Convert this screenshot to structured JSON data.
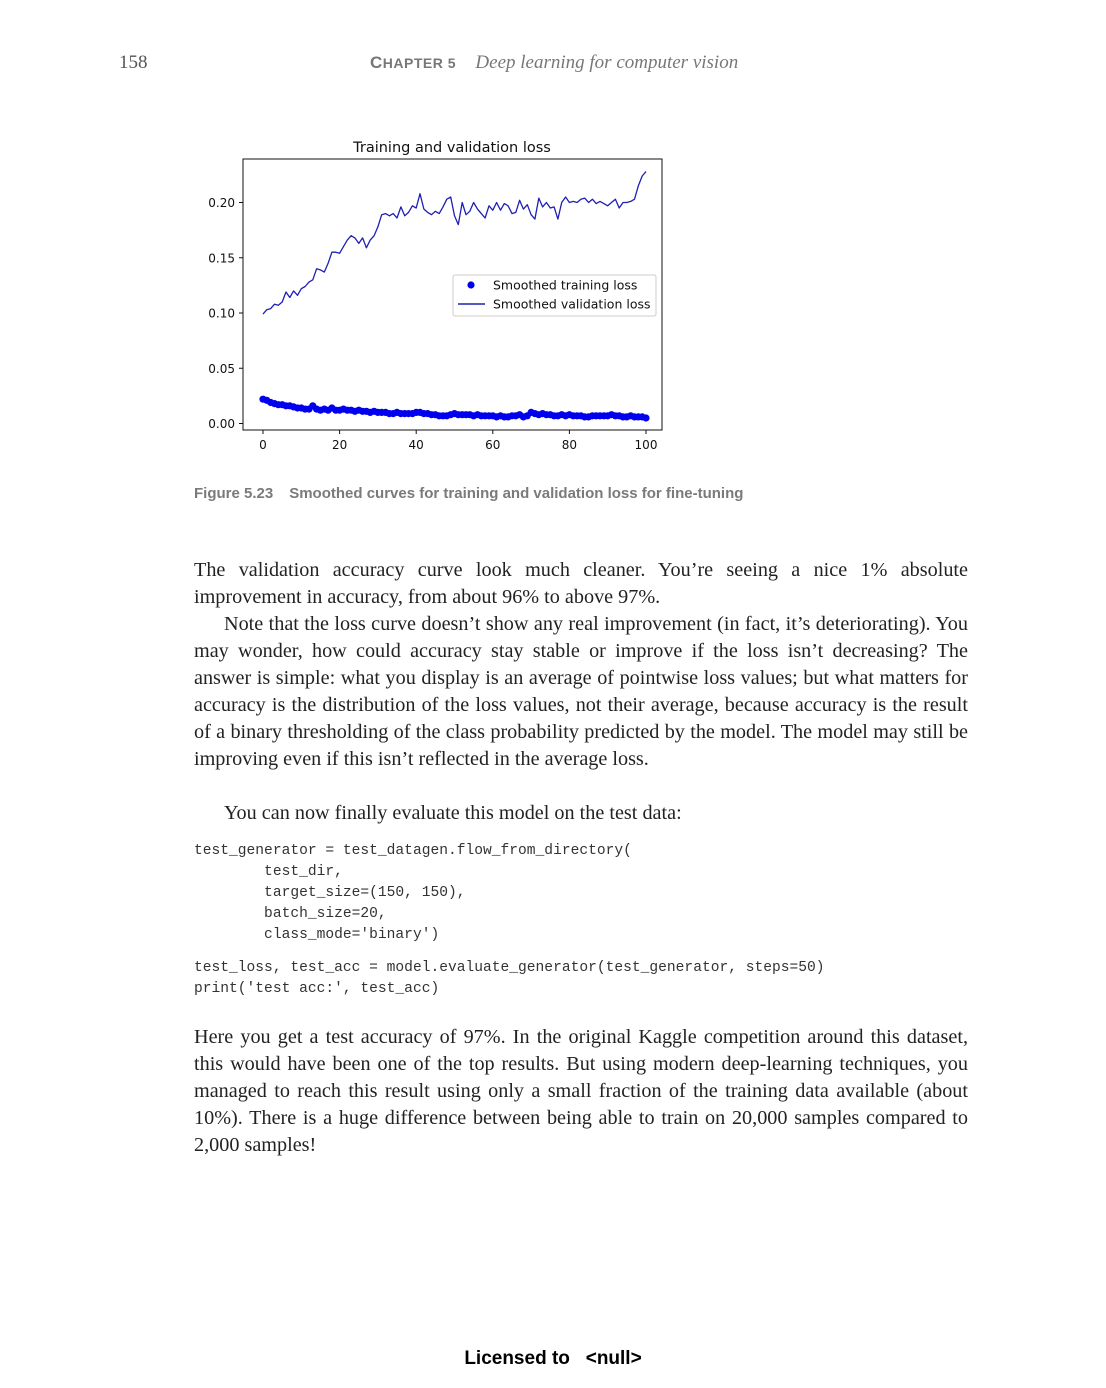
{
  "header": {
    "page_number": "158",
    "chapter_prefix_big": "C",
    "chapter_label": "HAPTER 5",
    "chapter_title": "Deep learning for computer vision"
  },
  "figure": {
    "number": "Figure 5.23",
    "caption": "Smoothed curves for training and validation loss for fine-tuning"
  },
  "chart_data": {
    "type": "line",
    "title": "Training and validation loss",
    "xlabel": "",
    "ylabel": "",
    "xlim": [
      0,
      100
    ],
    "ylim": [
      -0.005,
      0.238
    ],
    "xticks": [
      "0",
      "20",
      "40",
      "60",
      "80",
      "100"
    ],
    "yticks": [
      "0.00",
      "0.05",
      "0.10",
      "0.15",
      "0.20"
    ],
    "grid": false,
    "legend_position": "center-right",
    "series": [
      {
        "name": "Smoothed training loss",
        "style": "dots",
        "color": "#0000ee",
        "x": [
          0,
          1,
          2,
          3,
          4,
          5,
          6,
          7,
          8,
          9,
          10,
          11,
          12,
          13,
          14,
          15,
          16,
          17,
          18,
          19,
          20,
          21,
          22,
          23,
          24,
          25,
          26,
          27,
          28,
          29,
          30,
          31,
          32,
          33,
          34,
          35,
          36,
          37,
          38,
          39,
          40,
          41,
          42,
          43,
          44,
          45,
          46,
          47,
          48,
          49,
          50,
          51,
          52,
          53,
          54,
          55,
          56,
          57,
          58,
          59,
          60,
          61,
          62,
          63,
          64,
          65,
          66,
          67,
          68,
          69,
          70,
          71,
          72,
          73,
          74,
          75,
          76,
          77,
          78,
          79,
          80,
          81,
          82,
          83,
          84,
          85,
          86,
          87,
          88,
          89,
          90,
          91,
          92,
          93,
          94,
          95,
          96,
          97,
          98,
          99,
          100
        ],
        "y": [
          0.022,
          0.021,
          0.019,
          0.018,
          0.017,
          0.017,
          0.016,
          0.016,
          0.015,
          0.014,
          0.014,
          0.013,
          0.013,
          0.016,
          0.013,
          0.012,
          0.013,
          0.012,
          0.014,
          0.012,
          0.012,
          0.013,
          0.012,
          0.012,
          0.011,
          0.012,
          0.011,
          0.011,
          0.01,
          0.011,
          0.01,
          0.01,
          0.01,
          0.009,
          0.009,
          0.01,
          0.009,
          0.009,
          0.009,
          0.009,
          0.01,
          0.01,
          0.009,
          0.009,
          0.008,
          0.008,
          0.007,
          0.007,
          0.007,
          0.008,
          0.009,
          0.008,
          0.008,
          0.008,
          0.008,
          0.007,
          0.008,
          0.007,
          0.007,
          0.007,
          0.007,
          0.006,
          0.007,
          0.006,
          0.006,
          0.007,
          0.007,
          0.008,
          0.006,
          0.007,
          0.01,
          0.009,
          0.008,
          0.009,
          0.008,
          0.008,
          0.007,
          0.007,
          0.008,
          0.007,
          0.008,
          0.007,
          0.007,
          0.007,
          0.006,
          0.006,
          0.007,
          0.007,
          0.007,
          0.007,
          0.007,
          0.008,
          0.007,
          0.007,
          0.006,
          0.006,
          0.007,
          0.006,
          0.006,
          0.006,
          0.005
        ]
      },
      {
        "name": "Smoothed validation loss",
        "style": "line",
        "color": "#1f1fb4",
        "x": [
          0,
          1,
          2,
          3,
          4,
          5,
          6,
          7,
          8,
          9,
          10,
          11,
          12,
          13,
          14,
          15,
          16,
          17,
          18,
          19,
          20,
          21,
          22,
          23,
          24,
          25,
          26,
          27,
          28,
          29,
          30,
          31,
          32,
          33,
          34,
          35,
          36,
          37,
          38,
          39,
          40,
          41,
          42,
          43,
          44,
          45,
          46,
          47,
          48,
          49,
          50,
          51,
          52,
          53,
          54,
          55,
          56,
          57,
          58,
          59,
          60,
          61,
          62,
          63,
          64,
          65,
          66,
          67,
          68,
          69,
          70,
          71,
          72,
          73,
          74,
          75,
          76,
          77,
          78,
          79,
          80,
          81,
          82,
          83,
          84,
          85,
          86,
          87,
          88,
          89,
          90,
          91,
          92,
          93,
          94,
          95,
          96,
          97,
          98,
          99,
          100
        ],
        "y": [
          0.099,
          0.103,
          0.104,
          0.108,
          0.107,
          0.11,
          0.119,
          0.114,
          0.12,
          0.116,
          0.122,
          0.124,
          0.128,
          0.13,
          0.14,
          0.139,
          0.137,
          0.145,
          0.155,
          0.155,
          0.154,
          0.16,
          0.166,
          0.17,
          0.168,
          0.163,
          0.168,
          0.159,
          0.166,
          0.17,
          0.178,
          0.189,
          0.19,
          0.188,
          0.19,
          0.186,
          0.196,
          0.188,
          0.191,
          0.197,
          0.195,
          0.208,
          0.194,
          0.191,
          0.189,
          0.192,
          0.19,
          0.196,
          0.203,
          0.205,
          0.188,
          0.18,
          0.2,
          0.189,
          0.192,
          0.2,
          0.194,
          0.19,
          0.186,
          0.197,
          0.193,
          0.2,
          0.193,
          0.199,
          0.197,
          0.19,
          0.191,
          0.202,
          0.194,
          0.198,
          0.189,
          0.185,
          0.204,
          0.196,
          0.2,
          0.195,
          0.196,
          0.185,
          0.2,
          0.205,
          0.2,
          0.201,
          0.2,
          0.203,
          0.204,
          0.2,
          0.203,
          0.199,
          0.201,
          0.199,
          0.197,
          0.2,
          0.203,
          0.195,
          0.2,
          0.2,
          0.201,
          0.203,
          0.215,
          0.224,
          0.228
        ]
      }
    ]
  },
  "paragraphs": [
    "The validation accuracy curve look much cleaner. You’re seeing a nice 1% absolute improvement in accuracy, from about 96% to above 97%.",
    "Note that the loss curve doesn’t show any real improvement (in fact, it’s deteriorating). You may wonder, how could accuracy stay stable or improve if the loss isn’t decreasing? The answer is simple: what you display is an average of pointwise loss values; but what matters for accuracy is the distribution of the loss values, not their average, because accuracy is the result of a binary thresholding of the class probability predicted by the model. The model may still be improving even if this isn’t reflected in the average loss.",
    "You can now finally evaluate this model on the test data:"
  ],
  "code_blocks": [
    "test_generator = test_datagen.flow_from_directory(\n        test_dir,\n        target_size=(150, 150),\n        batch_size=20,\n        class_mode='binary')",
    "test_loss, test_acc = model.evaluate_generator(test_generator, steps=50)\nprint('test acc:', test_acc)"
  ],
  "closing_paragraph": "Here you get a test accuracy of 97%. In the original Kaggle competition around this dataset, this would have been one of the top results. But using modern deep-learning techniques, you managed to reach this result using only a small fraction of the training data available (about 10%). There is a huge difference between being able to train on 20,000 samples compared to 2,000 samples!",
  "footer": "Licensed to   <null>"
}
